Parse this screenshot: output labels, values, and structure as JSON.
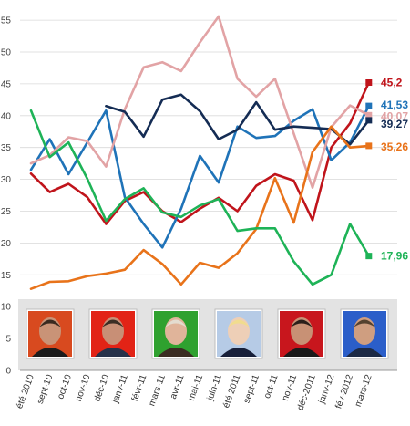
{
  "chart_data": {
    "type": "line",
    "title": "",
    "xlabel": "",
    "ylabel": "",
    "ylim": [
      0,
      57
    ],
    "yticks": [
      0,
      5,
      10,
      15,
      20,
      25,
      30,
      35,
      40,
      45,
      50,
      55
    ],
    "grid": true,
    "categories": [
      "été 2010",
      "sept-10",
      "oct-10",
      "nov-10",
      "déc-10",
      "janv-11",
      "févr-11",
      "mars-11",
      "avr-11",
      "mai-11",
      "juin-11",
      "été 2011",
      "sept-11",
      "oct-11",
      "nov-11",
      "déc-2011",
      "janv-12",
      "fév-2012",
      "mars-12"
    ],
    "series": [
      {
        "color": "#c0141b",
        "end_label": "45,2",
        "values": [
          30.9,
          28,
          29.3,
          27.2,
          23,
          26.6,
          28,
          25,
          23.3,
          25.4,
          27.1,
          25,
          29,
          30.8,
          29.8,
          23.6,
          35,
          38.8,
          45.2
        ]
      },
      {
        "color": "#1f73b8",
        "end_label": "41,53",
        "values": [
          31.5,
          36.3,
          30.8,
          35.8,
          40.8,
          27.2,
          23,
          19.3,
          25.4,
          33.7,
          29.5,
          38.3,
          36.5,
          36.8,
          39.2,
          41,
          33,
          35.8,
          41.53
        ]
      },
      {
        "color": "#e2a3a5",
        "end_label": "40,07",
        "values": [
          32.5,
          33.8,
          36.6,
          36,
          32,
          41,
          47.6,
          48.4,
          47,
          51.5,
          55.6,
          45.8,
          43,
          45.8,
          37.2,
          28.7,
          38.2,
          41.6,
          40.07
        ]
      },
      {
        "color": "#142c54",
        "end_label": "39,27",
        "values": [
          null,
          null,
          null,
          null,
          41.5,
          40.6,
          36.7,
          42.5,
          43.3,
          40.7,
          36.3,
          37.8,
          42.1,
          37.8,
          38.3,
          38.1,
          37.9,
          35.5,
          39.27
        ]
      },
      {
        "color": "#e8731a",
        "end_label": "35,26",
        "values": [
          12.8,
          13.9,
          14,
          14.8,
          15.2,
          15.8,
          18.9,
          16.7,
          13.5,
          16.9,
          16.1,
          18.4,
          22.2,
          30.2,
          23.2,
          34.3,
          38.3,
          35,
          35.26
        ]
      },
      {
        "color": "#1eb357",
        "end_label": "17,96",
        "values": [
          40.8,
          33.5,
          35.8,
          30.1,
          23.5,
          26.9,
          28.6,
          24.8,
          24.1,
          25.9,
          26.9,
          21.9,
          22.3,
          22.3,
          17.1,
          13.5,
          15,
          23,
          17.96
        ]
      }
    ]
  },
  "portraits": [
    {
      "bg": "#d84a1f",
      "skin": "#c99377",
      "hair": "#3a2a20",
      "suit": "#1c1c1c"
    },
    {
      "bg": "#e22316",
      "skin": "#c88f76",
      "hair": "#3b2d24",
      "suit": "#26324a"
    },
    {
      "bg": "#2fa12f",
      "skin": "#e0b49a",
      "hair": "#e4dccf",
      "suit": "#3a2c22"
    },
    {
      "bg": "#b6cbe6",
      "skin": "#eecfb7",
      "hair": "#f1dc8e",
      "suit": "#18203a"
    },
    {
      "bg": "#c8161d",
      "skin": "#c89175",
      "hair": "#2b1f1a",
      "suit": "#1a1a1a"
    },
    {
      "bg": "#2b5ec9",
      "skin": "#cf9e80",
      "hair": "#55422f",
      "suit": "#1d2a45"
    }
  ]
}
